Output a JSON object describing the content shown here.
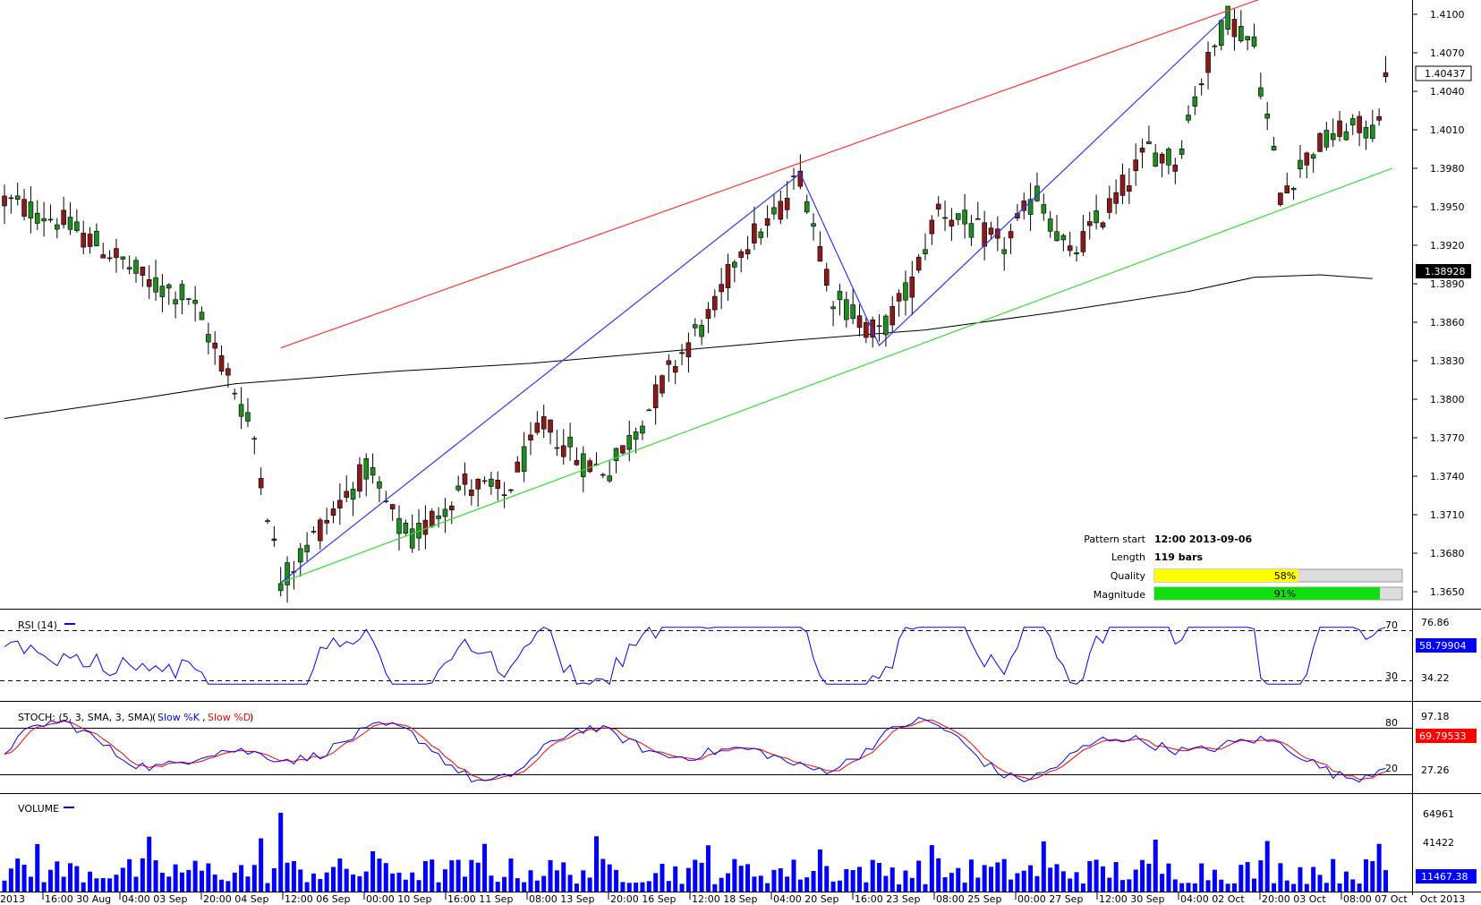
{
  "chart_data": {
    "type": "candlestick",
    "price_axis": {
      "ticks": [
        "1.4100",
        "1.4070",
        "1.4040",
        "1.4010",
        "1.3980",
        "1.3950",
        "1.3920",
        "1.3890",
        "1.3860",
        "1.3830",
        "1.3800",
        "1.3770",
        "1.3740",
        "1.3710",
        "1.3680",
        "1.3650"
      ],
      "ylim": [
        1.3636,
        1.41
      ],
      "current_price": "1.40437",
      "ma_value": "1.38928"
    },
    "time_axis": {
      "labels": [
        "2013",
        "16:00 30 Aug",
        "04:00 03 Sep",
        "20:00 04 Sep",
        "12:00 06 Sep",
        "00:00 10 Sep",
        "16:00 11 Sep",
        "08:00 13 Sep",
        "20:00 16 Sep",
        "12:00 18 Sep",
        "04:00 20 Sep",
        "16:00 23 Sep",
        "08:00 25 Sep",
        "00:00 27 Sep",
        "12:00 30 Sep",
        "04:00 02 Oct",
        "20:00 03 Oct",
        "08:00 07 Oct",
        "Oct 2013"
      ]
    },
    "pattern": {
      "start_label": "Pattern start",
      "start_value": "12:00 2013-09-06",
      "length_label": "Length",
      "length_value": "119 bars",
      "quality_label": "Quality",
      "quality_value": "58%",
      "quality_fraction": 0.58,
      "magnitude_label": "Magnitude",
      "magnitude_value": "91%",
      "magnitude_fraction": 0.91
    },
    "zigzag": [
      {
        "bar": 42,
        "price": 1.3657
      },
      {
        "bar": 121,
        "price": 1.3976
      },
      {
        "bar": 133,
        "price": 1.3842
      },
      {
        "bar": 186,
        "price": 1.41
      }
    ],
    "channel": {
      "upper": [
        {
          "bar": 42,
          "price": 1.384
        },
        {
          "bar": 191,
          "price": 1.4112
        }
      ],
      "lower": [
        {
          "bar": 42,
          "price": 1.3657
        },
        {
          "bar": 211,
          "price": 1.398
        }
      ]
    },
    "ma_points": [
      {
        "bar": 0,
        "price": 1.3785
      },
      {
        "bar": 20,
        "price": 1.38
      },
      {
        "bar": 35,
        "price": 1.3812
      },
      {
        "bar": 60,
        "price": 1.3822
      },
      {
        "bar": 80,
        "price": 1.3828
      },
      {
        "bar": 100,
        "price": 1.3837
      },
      {
        "bar": 120,
        "price": 1.3846
      },
      {
        "bar": 140,
        "price": 1.3854
      },
      {
        "bar": 160,
        "price": 1.3868
      },
      {
        "bar": 180,
        "price": 1.3884
      },
      {
        "bar": 190,
        "price": 1.3895
      },
      {
        "bar": 200,
        "price": 1.3897
      },
      {
        "bar": 208,
        "price": 1.3894
      }
    ],
    "rsi": {
      "title": "RSI (14)",
      "levels": [
        "70",
        "30"
      ],
      "axis_labels": [
        "76.86",
        "34.22"
      ],
      "current": "58.79904",
      "color": "#0000ff"
    },
    "stoch": {
      "title": "STOCH: (5, 3, SMA, 3, SMA)",
      "k_label": "Slow %K",
      "d_label": "Slow %D",
      "levels": [
        "80",
        "20"
      ],
      "axis_labels": [
        "97.18",
        "27.26"
      ],
      "current": "69.79533",
      "k_color": "#0000ff",
      "d_color": "#ff0000"
    },
    "volume": {
      "title": "VOLUME",
      "axis_labels": [
        "64961",
        "41422"
      ],
      "current": "11467.38",
      "color": "#0000ff"
    },
    "colors": {
      "bull": "#1e8c1e",
      "bear": "#8b1a1a",
      "zigzag": "#3333ff",
      "upper_channel": "#ff3333",
      "lower_channel": "#33dd33",
      "ma": "#000000",
      "quality_bar": "#ffff00",
      "magnitude_bar": "#11dd11"
    }
  }
}
